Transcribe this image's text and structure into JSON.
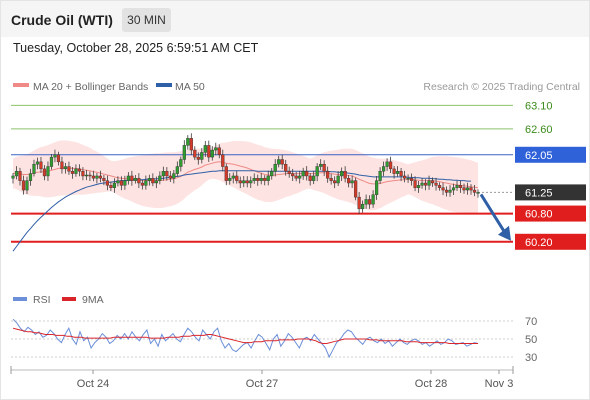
{
  "header": {
    "instrument": "Crude Oil (WTI)",
    "timeframe": "30 MIN",
    "datetime": "Tuesday, October 28, 2025 6:59:51 AM CET"
  },
  "legend": {
    "ma20_label": "MA 20 + Bollinger Bands",
    "ma50_label": "MA 50",
    "copyright": "Research © 2025 Trading Central",
    "colors": {
      "ma20": "#f08a86",
      "ma50": "#2f5fa6",
      "band_fill": "#fde3e2"
    }
  },
  "rsi_legend": {
    "rsi_label": "RSI",
    "ma_label": "9MA",
    "colors": {
      "rsi": "#6b8fd8",
      "ma": "#d9252a"
    }
  },
  "chart_data": [
    {
      "type": "candlestick",
      "title": "",
      "ylim": [
        59.6,
        63.3
      ],
      "x_ticks": [
        "Oct 24",
        "Oct 27",
        "Oct 28",
        "Nov 3"
      ],
      "price_levels": [
        {
          "value": "63.10",
          "style": "resistance-light"
        },
        {
          "value": "62.60",
          "style": "resistance-light"
        },
        {
          "value": "62.05",
          "style": "pivot"
        },
        {
          "value": "61.25",
          "style": "last-price"
        },
        {
          "value": "60.80",
          "style": "support"
        },
        {
          "value": "60.20",
          "style": "support"
        }
      ],
      "close": [
        61.6,
        61.7,
        61.5,
        61.3,
        61.5,
        61.65,
        61.85,
        61.9,
        61.75,
        61.6,
        61.8,
        62.0,
        62.05,
        61.9,
        61.75,
        61.8,
        61.7,
        61.65,
        61.75,
        61.7,
        61.6,
        61.62,
        61.6,
        61.55,
        61.6,
        61.55,
        61.5,
        61.4,
        61.35,
        61.45,
        61.5,
        61.4,
        61.5,
        61.6,
        61.5,
        61.55,
        61.45,
        61.4,
        61.5,
        61.55,
        61.45,
        61.5,
        61.6,
        61.7,
        61.6,
        61.55,
        61.65,
        61.8,
        61.95,
        62.25,
        62.4,
        62.15,
        62.0,
        61.95,
        62.1,
        62.25,
        62.0,
        62.15,
        62.2,
        62.05,
        61.8,
        61.5,
        61.55,
        61.6,
        61.5,
        61.45,
        61.5,
        61.45,
        61.5,
        61.55,
        61.5,
        61.55,
        61.5,
        61.6,
        61.7,
        61.85,
        61.95,
        61.85,
        61.7,
        61.65,
        61.6,
        61.55,
        61.6,
        61.7,
        61.6,
        61.5,
        61.6,
        61.8,
        61.85,
        61.7,
        61.55,
        61.5,
        61.45,
        61.6,
        61.7,
        61.55,
        61.45,
        61.5,
        61.15,
        60.9,
        61.0,
        61.1,
        61.0,
        61.2,
        61.5,
        61.7,
        61.8,
        61.9,
        61.75,
        61.65,
        61.7,
        61.6,
        61.55,
        61.55,
        61.5,
        61.35,
        61.4,
        61.45,
        61.4,
        61.5,
        61.45,
        61.4,
        61.35,
        61.3,
        61.25,
        61.3,
        61.35,
        61.4,
        61.35,
        61.3,
        61.35,
        61.3,
        61.25,
        61.25
      ],
      "series": [
        {
          "name": "MA 20",
          "values": [
            61.65,
            61.66,
            61.65,
            61.63,
            61.63,
            61.64,
            61.66,
            61.68,
            61.69,
            61.69,
            61.7,
            61.72,
            61.74,
            61.76,
            61.77,
            61.77,
            61.77,
            61.76,
            61.76,
            61.75,
            61.73,
            61.72,
            61.71,
            61.69,
            61.68,
            61.66,
            61.64,
            61.62,
            61.6,
            61.58,
            61.56,
            61.55,
            61.54,
            61.54,
            61.53,
            61.52,
            61.51,
            61.5,
            61.5,
            61.5,
            61.5,
            61.5,
            61.5,
            61.51,
            61.52,
            61.53,
            61.54,
            61.56,
            61.59,
            61.63,
            61.68,
            61.71,
            61.74,
            61.76,
            61.79,
            61.83,
            61.85,
            61.87,
            61.89,
            61.9,
            61.89,
            61.87,
            61.86,
            61.85,
            61.83,
            61.81,
            61.79,
            61.77,
            61.74,
            61.71,
            61.68,
            61.66,
            61.63,
            61.62,
            61.61,
            61.62,
            61.63,
            61.64,
            61.65,
            61.65,
            61.65,
            61.65,
            61.65,
            61.66,
            61.66,
            61.65,
            61.65,
            61.66,
            61.67,
            61.67,
            61.66,
            61.65,
            61.64,
            61.63,
            61.63,
            61.62,
            61.61,
            61.6,
            61.57,
            61.53,
            61.5,
            61.47,
            61.44,
            61.43,
            61.43,
            61.44,
            61.46,
            61.48,
            61.49,
            61.5,
            61.51,
            61.52,
            61.52,
            61.53,
            61.53,
            61.52,
            61.51,
            61.5,
            61.5,
            61.5,
            61.5,
            61.49,
            61.48,
            61.46,
            61.45,
            61.43,
            61.42,
            61.41,
            61.4,
            61.39,
            61.38,
            61.37,
            61.36,
            61.35
          ]
        },
        {
          "name": "MA 50",
          "values": [
            60.0,
            60.1,
            60.2,
            60.3,
            60.4,
            60.48,
            60.57,
            60.65,
            60.72,
            60.79,
            60.86,
            60.93,
            60.99,
            61.05,
            61.1,
            61.15,
            61.19,
            61.23,
            61.27,
            61.3,
            61.33,
            61.36,
            61.38,
            61.4,
            61.42,
            61.44,
            61.45,
            61.46,
            61.47,
            61.48,
            61.49,
            61.5,
            61.5,
            61.51,
            61.51,
            61.52,
            61.52,
            61.52,
            61.53,
            61.53,
            61.53,
            61.54,
            61.54,
            61.55,
            61.56,
            61.57,
            61.58,
            61.59,
            61.6,
            61.62,
            61.63,
            61.64,
            61.65,
            61.66,
            61.67,
            61.68,
            61.69,
            61.7,
            61.7,
            61.71,
            61.71,
            61.71,
            61.71,
            61.71,
            61.71,
            61.71,
            61.71,
            61.71,
            61.71,
            61.71,
            61.7,
            61.7,
            61.7,
            61.7,
            61.7,
            61.7,
            61.7,
            61.7,
            61.7,
            61.7,
            61.7,
            61.7,
            61.7,
            61.7,
            61.7,
            61.7,
            61.7,
            61.7,
            61.7,
            61.7,
            61.7,
            61.69,
            61.69,
            61.68,
            61.68,
            61.67,
            61.66,
            61.65,
            61.64,
            61.62,
            61.61,
            61.6,
            61.59,
            61.58,
            61.58,
            61.58,
            61.58,
            61.58,
            61.58,
            61.58,
            61.58,
            61.58,
            61.58,
            61.57,
            61.57,
            61.56,
            61.56,
            61.55,
            61.55,
            61.55,
            61.54,
            61.54,
            61.53,
            61.53,
            61.52,
            61.52,
            61.51,
            61.51,
            61.5,
            61.5,
            61.49,
            61.49
          ]
        }
      ],
      "bollinger_width": 0.45
    },
    {
      "type": "line",
      "title": "",
      "ylim": [
        20,
        80
      ],
      "y_ticks": [
        "70",
        "50",
        "30"
      ],
      "series": [
        {
          "name": "RSI",
          "values": [
            72,
            68,
            62,
            58,
            63,
            60,
            55,
            58,
            52,
            54,
            60,
            56,
            50,
            46,
            55,
            62,
            50,
            44,
            58,
            48,
            52,
            40,
            46,
            50,
            56,
            52,
            45,
            48,
            54,
            50,
            56,
            50,
            58,
            52,
            48,
            55,
            60,
            45,
            50,
            42,
            55,
            48,
            52,
            56,
            50,
            47,
            55,
            62,
            58,
            52,
            48,
            60,
            55,
            50,
            58,
            62,
            48,
            40,
            45,
            38,
            36,
            40,
            44,
            46,
            40,
            48,
            55,
            52,
            45,
            38,
            50,
            55,
            42,
            48,
            56,
            52,
            46,
            40,
            50,
            52,
            48,
            55,
            50,
            45,
            40,
            30,
            38,
            46,
            50,
            56,
            60,
            58,
            52,
            48,
            44,
            50,
            52,
            48,
            46,
            50,
            45,
            48,
            42,
            46,
            50,
            46,
            44,
            48,
            50,
            48,
            44,
            46,
            42,
            45,
            48,
            44,
            46,
            50,
            48,
            44,
            45,
            46,
            42,
            44,
            46,
            45
          ]
        },
        {
          "name": "9MA",
          "values": [
            62,
            61,
            60,
            59,
            58,
            58,
            57,
            57,
            56,
            55,
            55,
            55,
            54,
            54,
            54,
            53,
            53,
            52,
            52,
            52,
            51,
            51,
            51,
            51,
            51,
            51,
            51,
            51,
            52,
            52,
            52,
            52,
            52,
            52,
            52,
            52,
            52,
            52,
            51,
            51,
            51,
            51,
            51,
            52,
            52,
            52,
            52,
            53,
            53,
            53,
            54,
            54,
            54,
            54,
            55,
            55,
            54,
            53,
            52,
            51,
            50,
            49,
            48,
            47,
            46,
            46,
            46,
            47,
            47,
            47,
            48,
            48,
            48,
            48,
            49,
            49,
            49,
            49,
            49,
            50,
            50,
            50,
            50,
            49,
            48,
            46,
            45,
            45,
            46,
            47,
            48,
            49,
            50,
            50,
            50,
            50,
            50,
            50,
            50,
            49,
            49,
            49,
            48,
            48,
            48,
            48,
            48,
            48,
            48,
            47,
            47,
            47,
            47,
            46,
            46,
            46,
            46,
            46,
            46,
            46,
            46,
            45,
            45,
            45,
            45,
            45,
            45,
            45,
            45,
            45
          ]
        }
      ]
    }
  ]
}
